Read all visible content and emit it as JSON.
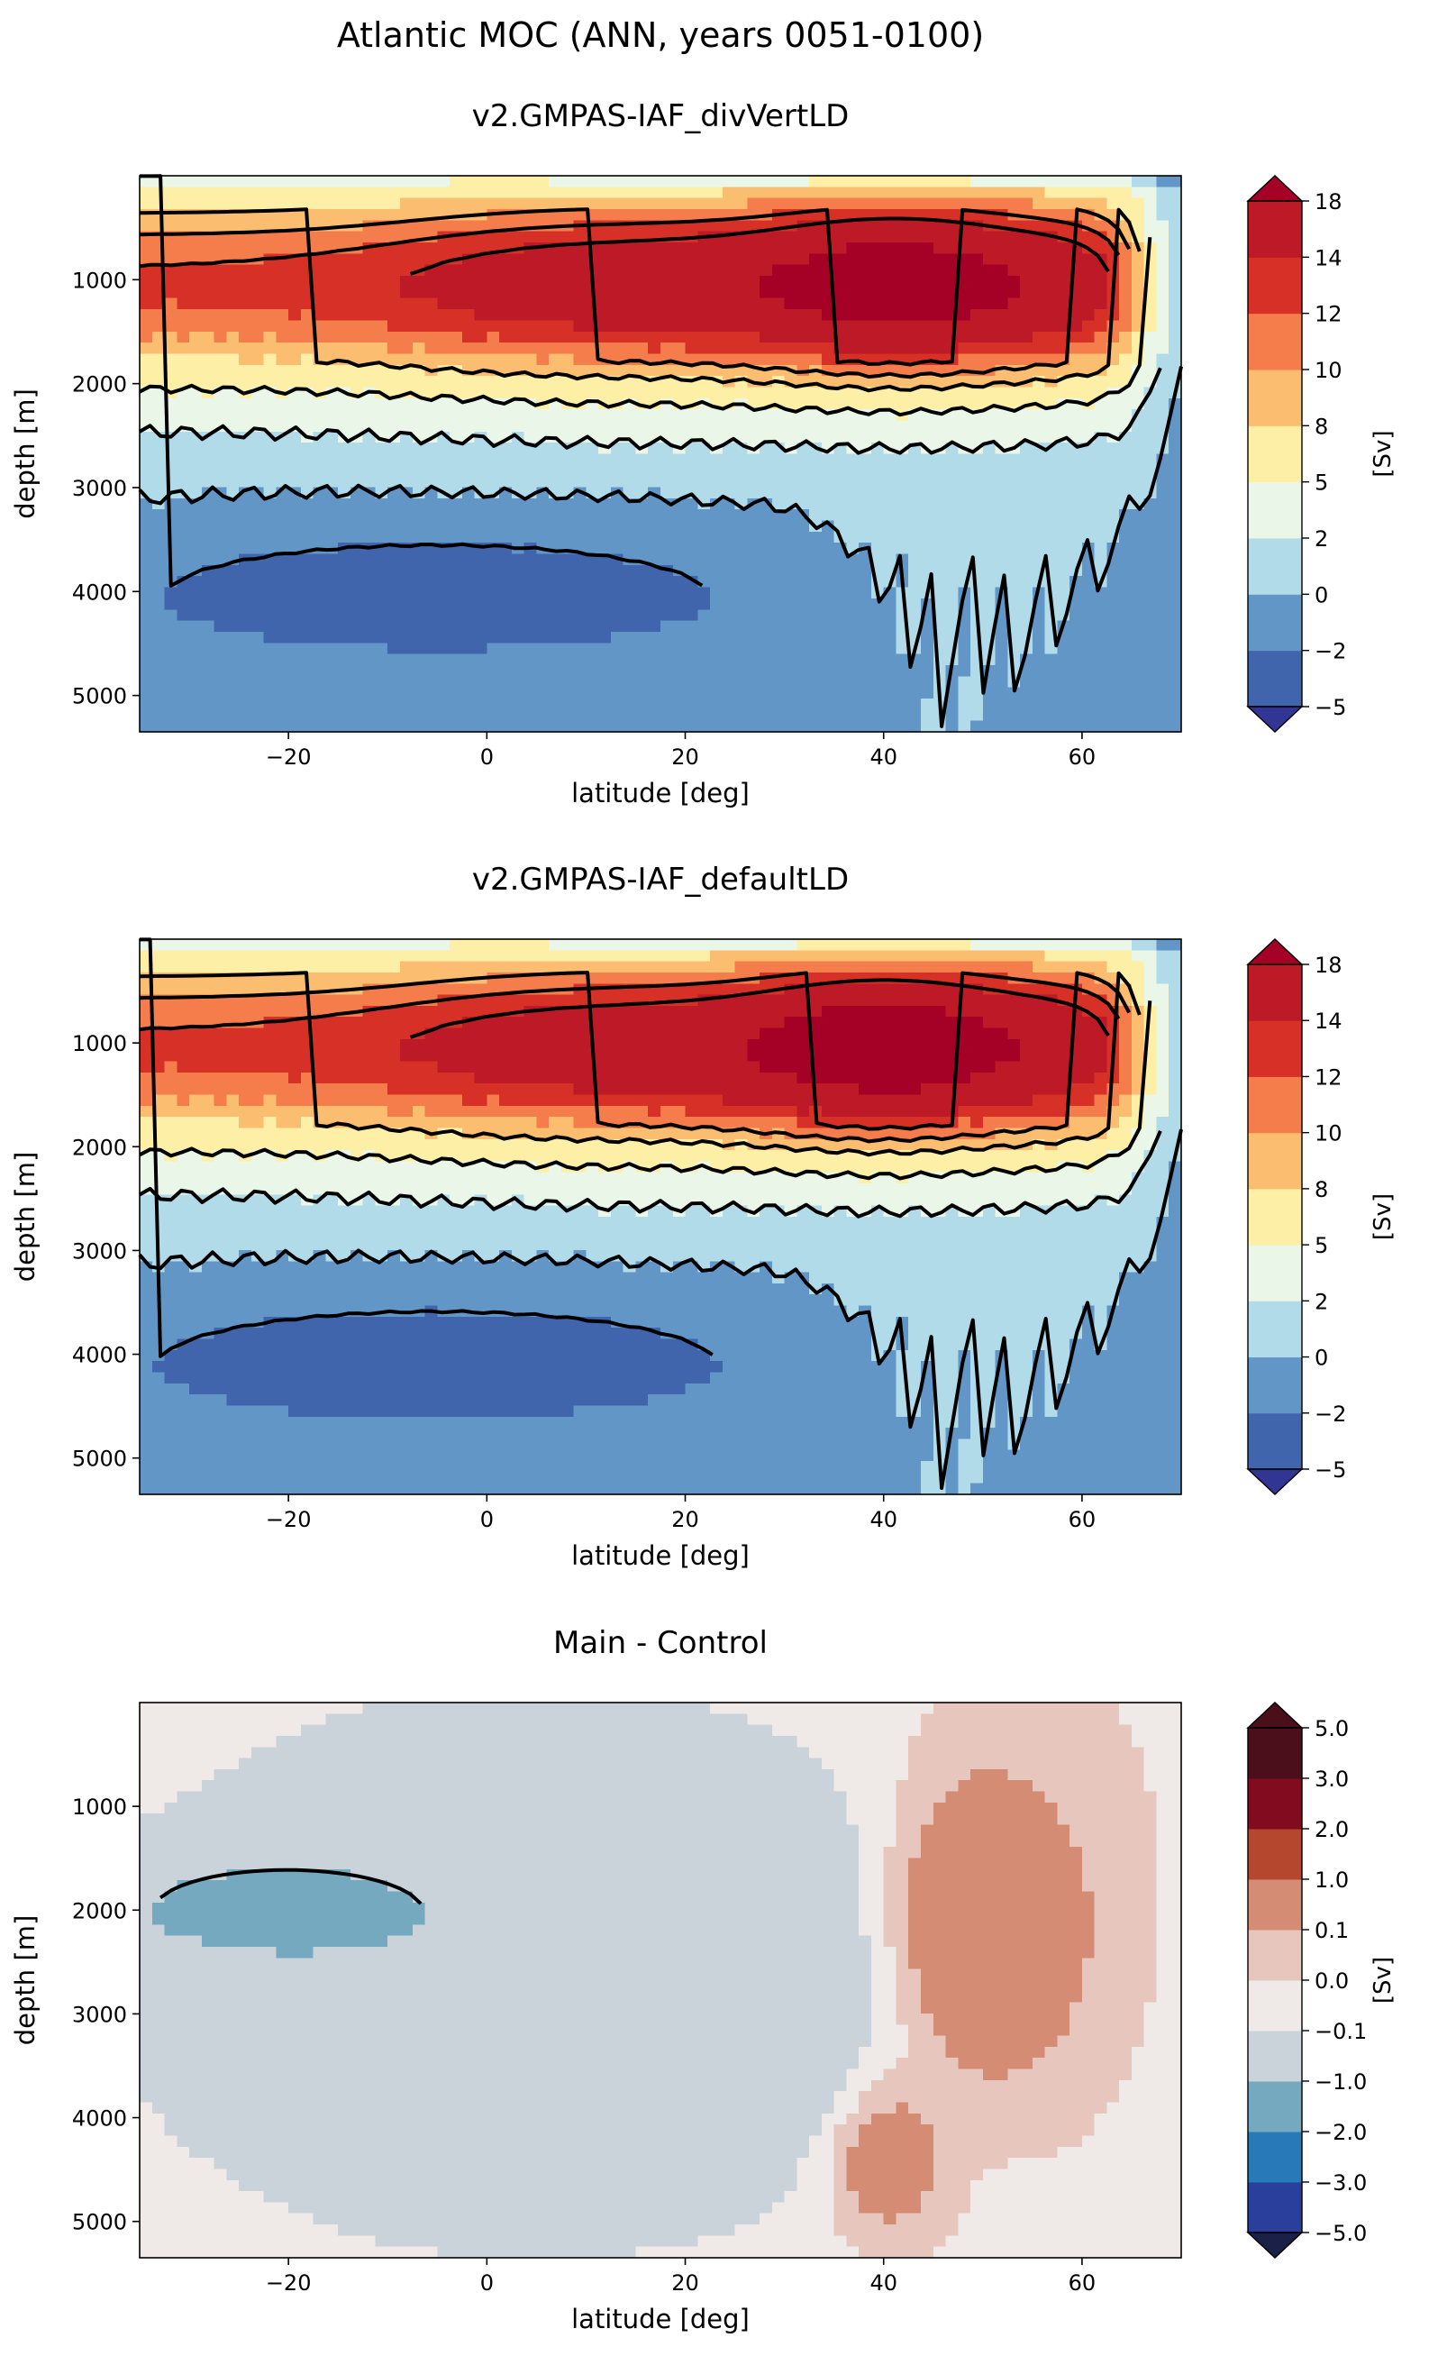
{
  "figure_title": "Atlantic MOC (ANN, years 0051-0100)",
  "colors": {
    "main": [
      "#313695",
      "#4065ad",
      "#6196c6",
      "#b2dbe9",
      "#e9f6e8",
      "#fdefa5",
      "#fbbd6f",
      "#f57c4b",
      "#d73027",
      "#bd1926",
      "#a50026"
    ],
    "diff": [
      "#1b2048",
      "#2a3e9b",
      "#2779b8",
      "#74a9bf",
      "#c9d3d9",
      "#efe9e8",
      "#e6c6bd",
      "#d48c75",
      "#b6472f",
      "#830b20",
      "#4a0f1a"
    ]
  },
  "chart_data": [
    {
      "type": "heatmap",
      "title": "v2.GMPAS-IAF_divVertLD",
      "xlabel": "latitude [deg]",
      "ylabel": "depth [m]",
      "xlim": [
        -35,
        70
      ],
      "ylim": [
        5350,
        0
      ],
      "xticks": [
        -20,
        0,
        20,
        40,
        60
      ],
      "xtick_labels": [
        "−20",
        "0",
        "20",
        "40",
        "60"
      ],
      "yticks": [
        1000,
        2000,
        3000,
        4000,
        5000
      ],
      "ytick_labels": [
        "1000",
        "2000",
        "3000",
        "4000",
        "5000"
      ],
      "colorbar_label": "[Sv]",
      "colorbar_levels": [
        "−5",
        "−2",
        "0",
        "2",
        "5",
        "8",
        "10",
        "12",
        "14",
        "18"
      ],
      "field": {
        "amoc_max": 16,
        "amoc_max_lat": 41,
        "amoc_max_depth": 1050,
        "bottom_cell_min": -3.5,
        "bottom_cell_depth": 4050
      }
    },
    {
      "type": "heatmap",
      "title": "v2.GMPAS-IAF_defaultLD",
      "xlabel": "latitude [deg]",
      "ylabel": "depth [m]",
      "xlim": [
        -35,
        70
      ],
      "ylim": [
        5350,
        0
      ],
      "xticks": [
        -20,
        0,
        20,
        40,
        60
      ],
      "xtick_labels": [
        "−20",
        "0",
        "20",
        "40",
        "60"
      ],
      "yticks": [
        1000,
        2000,
        3000,
        4000,
        5000
      ],
      "ytick_labels": [
        "1000",
        "2000",
        "3000",
        "4000",
        "5000"
      ],
      "colorbar_label": "[Sv]",
      "colorbar_levels": [
        "−5",
        "−2",
        "0",
        "2",
        "5",
        "8",
        "10",
        "12",
        "14",
        "18"
      ],
      "field": {
        "amoc_max": 16.5,
        "amoc_max_lat": 40,
        "amoc_max_depth": 1050,
        "bottom_cell_min": -3.6,
        "bottom_cell_depth": 4100
      }
    },
    {
      "type": "heatmap",
      "title": "Main - Control",
      "xlabel": "latitude [deg]",
      "ylabel": "depth [m]",
      "xlim": [
        -35,
        70
      ],
      "ylim": [
        5350,
        0
      ],
      "xticks": [
        -20,
        0,
        20,
        40,
        60
      ],
      "xtick_labels": [
        "−20",
        "0",
        "20",
        "40",
        "60"
      ],
      "yticks": [
        1000,
        2000,
        3000,
        4000,
        5000
      ],
      "ytick_labels": [
        "1000",
        "2000",
        "3000",
        "4000",
        "5000"
      ],
      "colorbar_label": "[Sv]",
      "colorbar_levels": [
        "−5.0",
        "−3.0",
        "−2.0",
        "−1.0",
        "−0.1",
        "0.0",
        "0.1",
        "1.0",
        "2.0",
        "3.0",
        "5.0"
      ],
      "field": {
        "negative_anomaly": -1.5,
        "negative_anomaly_lat": -22,
        "negative_anomaly_depth": 2000
      }
    }
  ]
}
